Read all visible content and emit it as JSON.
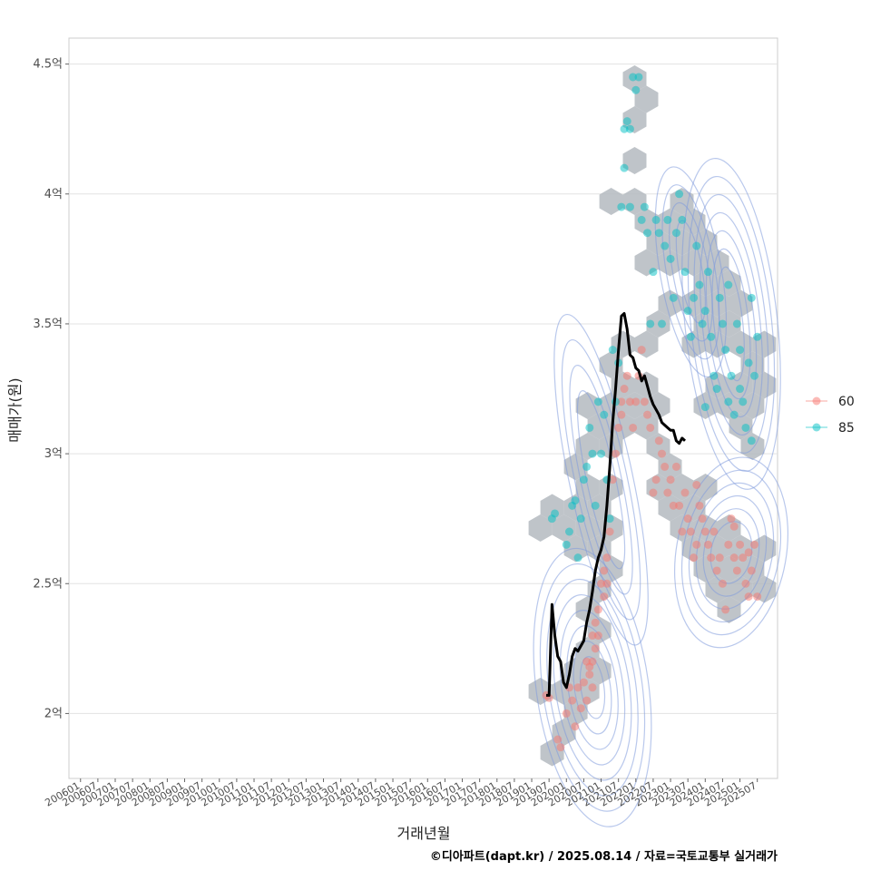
{
  "chart_data": {
    "type": "scatter",
    "xlabel": "거래년월",
    "ylabel": "매매가(원)",
    "caption": "©디아파트(dapt.kr) / 2025.08.14 / 자료=국토교통부 실거래가",
    "x_ticks": [
      "200601",
      "200607",
      "200701",
      "200707",
      "200801",
      "200807",
      "200901",
      "200907",
      "201001",
      "201007",
      "201101",
      "201107",
      "201201",
      "201207",
      "201301",
      "201307",
      "201401",
      "201407",
      "201501",
      "201507",
      "201601",
      "201607",
      "201701",
      "201707",
      "201801",
      "201807",
      "201901",
      "201907",
      "202001",
      "202007",
      "202101",
      "202107",
      "202201",
      "202207",
      "202301",
      "202307",
      "202401",
      "202407",
      "202501",
      "202507"
    ],
    "y_ticks": [
      {
        "value": 2.0,
        "label": "2억"
      },
      {
        "value": 2.5,
        "label": "2.5억"
      },
      {
        "value": 3.0,
        "label": "3억"
      },
      {
        "value": 3.5,
        "label": "3.5억"
      },
      {
        "value": 4.0,
        "label": "4억"
      },
      {
        "value": 4.5,
        "label": "4.5억"
      }
    ],
    "ylim": [
      1.75,
      4.6
    ],
    "xlim": [
      "200509",
      "202602"
    ],
    "grid": true,
    "legend_position": "right",
    "colors": {
      "60": "#F8766D",
      "85": "#00BFC4",
      "trend": "#000000",
      "density": "#7F9BDC",
      "hex": "#B4BAC0"
    },
    "series": [
      {
        "name": "60",
        "color": "#F8766D",
        "points": [
          [
            "201906",
            2.07
          ],
          [
            "201907",
            2.06
          ],
          [
            "201910",
            1.9
          ],
          [
            "201911",
            1.87
          ],
          [
            "202001",
            2.0
          ],
          [
            "202002",
            2.1
          ],
          [
            "202003",
            2.05
          ],
          [
            "202004",
            1.95
          ],
          [
            "202005",
            2.1
          ],
          [
            "202006",
            2.02
          ],
          [
            "202007",
            2.12
          ],
          [
            "202008",
            2.2
          ],
          [
            "202008",
            2.05
          ],
          [
            "202009",
            2.15
          ],
          [
            "202009",
            2.18
          ],
          [
            "202010",
            2.1
          ],
          [
            "202010",
            2.2
          ],
          [
            "202010",
            2.3
          ],
          [
            "202011",
            2.25
          ],
          [
            "202011",
            2.35
          ],
          [
            "202012",
            2.4
          ],
          [
            "202012",
            2.3
          ],
          [
            "202101",
            2.5
          ],
          [
            "202102",
            2.45
          ],
          [
            "202102",
            2.55
          ],
          [
            "202103",
            2.6
          ],
          [
            "202103",
            2.5
          ],
          [
            "202104",
            2.7
          ],
          [
            "202105",
            2.9
          ],
          [
            "202106",
            3.0
          ],
          [
            "202107",
            3.1
          ],
          [
            "202108",
            3.15
          ],
          [
            "202108",
            3.2
          ],
          [
            "202109",
            3.25
          ],
          [
            "202110",
            3.3
          ],
          [
            "202111",
            3.2
          ],
          [
            "202112",
            3.1
          ],
          [
            "202201",
            3.2
          ],
          [
            "202202",
            3.3
          ],
          [
            "202203",
            3.4
          ],
          [
            "202204",
            3.2
          ],
          [
            "202205",
            3.15
          ],
          [
            "202206",
            3.1
          ],
          [
            "202207",
            2.85
          ],
          [
            "202208",
            2.9
          ],
          [
            "202209",
            3.05
          ],
          [
            "202210",
            3.0
          ],
          [
            "202211",
            2.95
          ],
          [
            "202212",
            2.85
          ],
          [
            "202301",
            2.9
          ],
          [
            "202302",
            2.8
          ],
          [
            "202303",
            2.95
          ],
          [
            "202304",
            2.8
          ],
          [
            "202305",
            2.7
          ],
          [
            "202306",
            2.85
          ],
          [
            "202307",
            2.75
          ],
          [
            "202308",
            2.7
          ],
          [
            "202309",
            2.6
          ],
          [
            "202310",
            2.65
          ],
          [
            "202311",
            2.8
          ],
          [
            "202312",
            2.75
          ],
          [
            "202401",
            2.7
          ],
          [
            "202402",
            2.65
          ],
          [
            "202403",
            2.6
          ],
          [
            "202404",
            2.7
          ],
          [
            "202405",
            2.55
          ],
          [
            "202406",
            2.6
          ],
          [
            "202407",
            2.5
          ],
          [
            "202408",
            2.4
          ],
          [
            "202409",
            2.65
          ],
          [
            "202410",
            2.75
          ],
          [
            "202411",
            2.6
          ],
          [
            "202412",
            2.55
          ],
          [
            "202501",
            2.65
          ],
          [
            "202502",
            2.6
          ],
          [
            "202503",
            2.5
          ],
          [
            "202504",
            2.45
          ],
          [
            "202505",
            2.55
          ],
          [
            "202506",
            2.65
          ],
          [
            "202507",
            2.45
          ],
          [
            "202504",
            2.62
          ],
          [
            "202411",
            2.72
          ],
          [
            "202310",
            2.88
          ]
        ]
      },
      {
        "name": "85",
        "color": "#00BFC4",
        "points": [
          [
            "201908",
            2.75
          ],
          [
            "201909",
            2.77
          ],
          [
            "202001",
            2.65
          ],
          [
            "202002",
            2.7
          ],
          [
            "202003",
            2.8
          ],
          [
            "202004",
            2.82
          ],
          [
            "202005",
            2.6
          ],
          [
            "202006",
            2.75
          ],
          [
            "202007",
            2.9
          ],
          [
            "202008",
            2.95
          ],
          [
            "202009",
            3.1
          ],
          [
            "202010",
            3.0
          ],
          [
            "202011",
            2.8
          ],
          [
            "202012",
            3.2
          ],
          [
            "202101",
            3.0
          ],
          [
            "202102",
            3.15
          ],
          [
            "202103",
            2.9
          ],
          [
            "202104",
            2.75
          ],
          [
            "202105",
            3.4
          ],
          [
            "202106",
            3.2
          ],
          [
            "202107",
            3.35
          ],
          [
            "202108",
            3.95
          ],
          [
            "202109",
            4.1
          ],
          [
            "202111",
            3.95
          ],
          [
            "202109",
            4.25
          ],
          [
            "202110",
            4.28
          ],
          [
            "202111",
            4.25
          ],
          [
            "202112",
            4.45
          ],
          [
            "202201",
            4.4
          ],
          [
            "202202",
            4.45
          ],
          [
            "202203",
            3.9
          ],
          [
            "202204",
            3.95
          ],
          [
            "202205",
            3.85
          ],
          [
            "202206",
            3.5
          ],
          [
            "202207",
            3.7
          ],
          [
            "202208",
            3.9
          ],
          [
            "202209",
            3.85
          ],
          [
            "202210",
            3.5
          ],
          [
            "202211",
            3.8
          ],
          [
            "202212",
            3.9
          ],
          [
            "202301",
            3.75
          ],
          [
            "202302",
            3.6
          ],
          [
            "202303",
            3.85
          ],
          [
            "202304",
            4.0
          ],
          [
            "202305",
            3.9
          ],
          [
            "202306",
            3.7
          ],
          [
            "202307",
            3.55
          ],
          [
            "202308",
            3.45
          ],
          [
            "202309",
            3.6
          ],
          [
            "202310",
            3.8
          ],
          [
            "202311",
            3.65
          ],
          [
            "202312",
            3.5
          ],
          [
            "202401",
            3.55
          ],
          [
            "202402",
            3.7
          ],
          [
            "202403",
            3.45
          ],
          [
            "202404",
            3.3
          ],
          [
            "202405",
            3.25
          ],
          [
            "202406",
            3.6
          ],
          [
            "202407",
            3.5
          ],
          [
            "202408",
            3.4
          ],
          [
            "202409",
            3.2
          ],
          [
            "202410",
            3.3
          ],
          [
            "202411",
            3.15
          ],
          [
            "202412",
            3.5
          ],
          [
            "202501",
            3.4
          ],
          [
            "202502",
            3.2
          ],
          [
            "202503",
            3.1
          ],
          [
            "202504",
            3.35
          ],
          [
            "202505",
            3.6
          ],
          [
            "202506",
            3.3
          ],
          [
            "202507",
            3.45
          ],
          [
            "202505",
            3.05
          ],
          [
            "202501",
            3.25
          ],
          [
            "202409",
            3.65
          ],
          [
            "202401",
            3.18
          ]
        ]
      }
    ],
    "trend_line": {
      "name": "trend",
      "points": [
        [
          "201906",
          2.07
        ],
        [
          "201907",
          2.07
        ],
        [
          "201908",
          2.42
        ],
        [
          "201909",
          2.3
        ],
        [
          "201910",
          2.22
        ],
        [
          "201911",
          2.2
        ],
        [
          "201912",
          2.12
        ],
        [
          "202001",
          2.1
        ],
        [
          "202002",
          2.15
        ],
        [
          "202003",
          2.22
        ],
        [
          "202004",
          2.25
        ],
        [
          "202005",
          2.24
        ],
        [
          "202006",
          2.26
        ],
        [
          "202007",
          2.28
        ],
        [
          "202008",
          2.35
        ],
        [
          "202009",
          2.4
        ],
        [
          "202010",
          2.47
        ],
        [
          "202011",
          2.55
        ],
        [
          "202012",
          2.6
        ],
        [
          "202101",
          2.63
        ],
        [
          "202102",
          2.68
        ],
        [
          "202103",
          2.8
        ],
        [
          "202104",
          2.95
        ],
        [
          "202105",
          3.12
        ],
        [
          "202106",
          3.25
        ],
        [
          "202107",
          3.4
        ],
        [
          "202108",
          3.53
        ],
        [
          "202109",
          3.54
        ],
        [
          "202110",
          3.48
        ],
        [
          "202111",
          3.38
        ],
        [
          "202112",
          3.37
        ],
        [
          "202201",
          3.33
        ],
        [
          "202202",
          3.32
        ],
        [
          "202203",
          3.28
        ],
        [
          "202204",
          3.3
        ],
        [
          "202205",
          3.26
        ],
        [
          "202206",
          3.22
        ],
        [
          "202207",
          3.19
        ],
        [
          "202208",
          3.17
        ],
        [
          "202209",
          3.15
        ],
        [
          "202210",
          3.12
        ],
        [
          "202211",
          3.11
        ],
        [
          "202212",
          3.1
        ],
        [
          "202301",
          3.09
        ],
        [
          "202302",
          3.09
        ],
        [
          "202303",
          3.05
        ],
        [
          "202304",
          3.04
        ],
        [
          "202305",
          3.06
        ],
        [
          "202306",
          3.05
        ]
      ]
    },
    "legend": [
      {
        "label": "60",
        "color": "#F8766D"
      },
      {
        "label": "85",
        "color": "#00BFC4"
      }
    ]
  }
}
